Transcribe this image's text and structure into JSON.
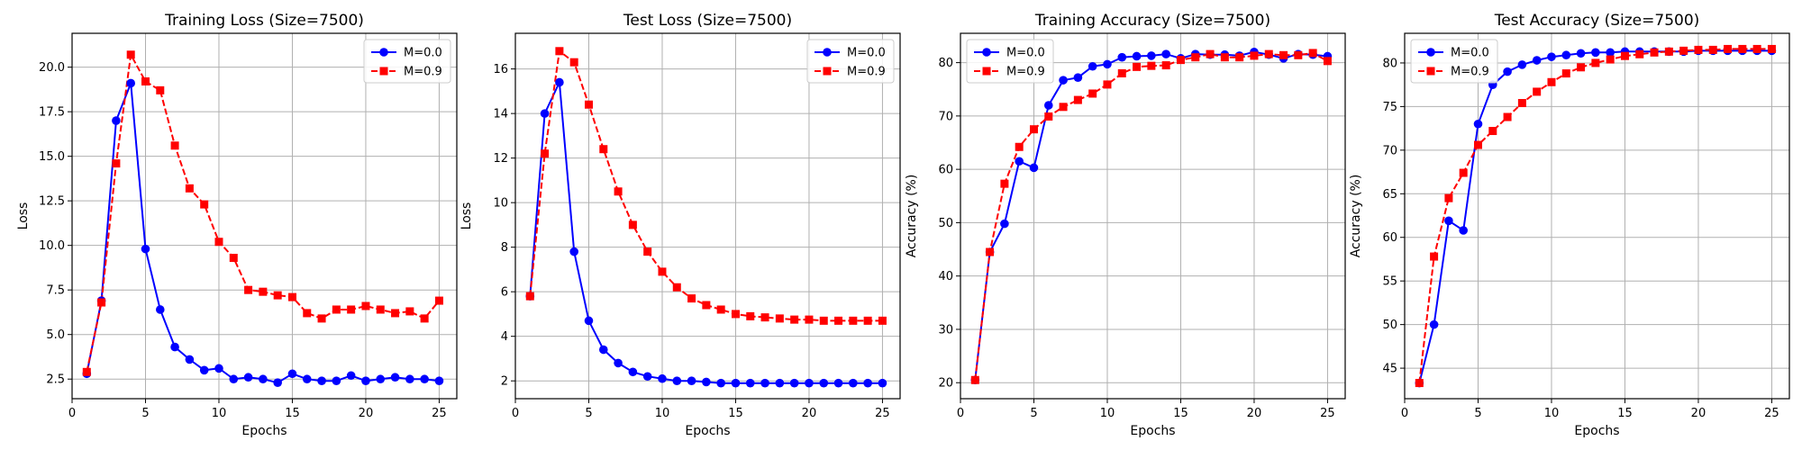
{
  "colors": {
    "m0": "#0000ff",
    "m9": "#ff0000",
    "grid": "#b0b0b0",
    "axis": "#000000"
  },
  "chart_data": [
    {
      "type": "line",
      "title": "Training Loss (Size=7500)",
      "xlabel": "Epochs",
      "ylabel": "Loss",
      "xlim": [
        0,
        26.2
      ],
      "ylim": [
        1.4,
        21.9
      ],
      "xticks": [
        0,
        5,
        10,
        15,
        20,
        25
      ],
      "yticks": [
        2.5,
        5.0,
        7.5,
        10.0,
        12.5,
        15.0,
        17.5,
        20.0
      ],
      "ytick_decimals": 1,
      "grid": true,
      "legend_position": "top-right",
      "x": [
        1,
        2,
        3,
        4,
        5,
        6,
        7,
        8,
        9,
        10,
        11,
        12,
        13,
        14,
        15,
        16,
        17,
        18,
        19,
        20,
        21,
        22,
        23,
        24,
        25
      ],
      "series": [
        {
          "name": "M=0.0",
          "color": "#0000ff",
          "marker": "circle",
          "linestyle": "solid",
          "values": [
            2.8,
            6.9,
            17.0,
            19.1,
            9.8,
            6.4,
            4.3,
            3.6,
            3.0,
            3.1,
            2.5,
            2.6,
            2.5,
            2.3,
            2.8,
            2.5,
            2.4,
            2.4,
            2.7,
            2.4,
            2.5,
            2.6,
            2.5,
            2.5,
            2.4
          ]
        },
        {
          "name": "M=0.9",
          "color": "#ff0000",
          "marker": "square",
          "linestyle": "dashed",
          "values": [
            2.9,
            6.8,
            14.6,
            20.7,
            19.2,
            18.7,
            15.6,
            13.2,
            12.3,
            10.2,
            9.3,
            7.5,
            7.4,
            7.2,
            7.1,
            6.2,
            5.9,
            6.4,
            6.4,
            6.6,
            6.4,
            6.2,
            6.3,
            5.9,
            6.9
          ]
        }
      ]
    },
    {
      "type": "line",
      "title": "Test Loss (Size=7500)",
      "xlabel": "Epochs",
      "ylabel": "Loss",
      "xlim": [
        0,
        26.2
      ],
      "ylim": [
        1.2,
        17.6
      ],
      "xticks": [
        0,
        5,
        10,
        15,
        20,
        25
      ],
      "yticks": [
        2,
        4,
        6,
        8,
        10,
        12,
        14,
        16
      ],
      "ytick_decimals": 0,
      "grid": true,
      "legend_position": "top-right",
      "x": [
        1,
        2,
        3,
        4,
        5,
        6,
        7,
        8,
        9,
        10,
        11,
        12,
        13,
        14,
        15,
        16,
        17,
        18,
        19,
        20,
        21,
        22,
        23,
        24,
        25
      ],
      "series": [
        {
          "name": "M=0.0",
          "color": "#0000ff",
          "marker": "circle",
          "linestyle": "solid",
          "values": [
            5.8,
            14.0,
            15.4,
            7.8,
            4.7,
            3.4,
            2.8,
            2.4,
            2.2,
            2.1,
            2.0,
            2.0,
            1.95,
            1.9,
            1.9,
            1.9,
            1.9,
            1.9,
            1.9,
            1.9,
            1.9,
            1.9,
            1.9,
            1.9,
            1.9
          ]
        },
        {
          "name": "M=0.9",
          "color": "#ff0000",
          "marker": "square",
          "linestyle": "dashed",
          "values": [
            5.8,
            12.2,
            16.8,
            16.3,
            14.4,
            12.4,
            10.5,
            9.0,
            7.8,
            6.9,
            6.2,
            5.7,
            5.4,
            5.2,
            5.0,
            4.9,
            4.85,
            4.8,
            4.75,
            4.75,
            4.7,
            4.7,
            4.7,
            4.7,
            4.7
          ]
        }
      ]
    },
    {
      "type": "line",
      "title": "Training Accuracy (Size=7500)",
      "xlabel": "Epochs",
      "ylabel": "Accuracy (%)",
      "xlim": [
        0,
        26.2
      ],
      "ylim": [
        17.0,
        85.5
      ],
      "xticks": [
        0,
        5,
        10,
        15,
        20,
        25
      ],
      "yticks": [
        20,
        30,
        40,
        50,
        60,
        70,
        80
      ],
      "ytick_decimals": 0,
      "grid": true,
      "legend_position": "top-left",
      "x": [
        1,
        2,
        3,
        4,
        5,
        6,
        7,
        8,
        9,
        10,
        11,
        12,
        13,
        14,
        15,
        16,
        17,
        18,
        19,
        20,
        21,
        22,
        23,
        24,
        25
      ],
      "series": [
        {
          "name": "M=0.0",
          "color": "#0000ff",
          "marker": "circle",
          "linestyle": "solid",
          "values": [
            20.5,
            44.5,
            49.8,
            61.5,
            60.3,
            72.0,
            76.7,
            77.2,
            79.3,
            79.7,
            81.0,
            81.2,
            81.3,
            81.6,
            80.8,
            81.6,
            81.5,
            81.5,
            81.3,
            82.0,
            81.5,
            80.8,
            81.6,
            81.5,
            81.2
          ]
        },
        {
          "name": "M=0.9",
          "color": "#ff0000",
          "marker": "square",
          "linestyle": "dashed",
          "values": [
            20.5,
            44.5,
            57.3,
            64.2,
            67.5,
            69.9,
            71.7,
            73.0,
            74.2,
            75.9,
            78.0,
            79.2,
            79.4,
            79.5,
            80.5,
            81.0,
            81.6,
            81.0,
            81.0,
            81.3,
            81.6,
            81.4,
            81.4,
            81.8,
            80.3
          ]
        }
      ]
    },
    {
      "type": "line",
      "title": "Test Accuracy (Size=7500)",
      "xlabel": "Epochs",
      "ylabel": "Accuracy (%)",
      "xlim": [
        0,
        26.2
      ],
      "ylim": [
        41.5,
        83.4
      ],
      "xticks": [
        0,
        5,
        10,
        15,
        20,
        25
      ],
      "yticks": [
        45,
        50,
        55,
        60,
        65,
        70,
        75,
        80
      ],
      "ytick_decimals": 0,
      "grid": true,
      "legend_position": "top-left",
      "x": [
        1,
        2,
        3,
        4,
        5,
        6,
        7,
        8,
        9,
        10,
        11,
        12,
        13,
        14,
        15,
        16,
        17,
        18,
        19,
        20,
        21,
        22,
        23,
        24,
        25
      ],
      "series": [
        {
          "name": "M=0.0",
          "color": "#0000ff",
          "marker": "circle",
          "linestyle": "solid",
          "values": [
            43.3,
            50.0,
            61.9,
            60.8,
            73.0,
            77.5,
            79.0,
            79.8,
            80.3,
            80.7,
            80.9,
            81.1,
            81.2,
            81.2,
            81.3,
            81.3,
            81.3,
            81.3,
            81.3,
            81.4,
            81.4,
            81.4,
            81.4,
            81.4,
            81.4
          ]
        },
        {
          "name": "M=0.9",
          "color": "#ff0000",
          "marker": "square",
          "linestyle": "dashed",
          "values": [
            43.3,
            57.8,
            64.5,
            67.4,
            70.6,
            72.2,
            73.8,
            75.4,
            76.7,
            77.8,
            78.8,
            79.5,
            80.0,
            80.4,
            80.8,
            81.0,
            81.2,
            81.3,
            81.4,
            81.5,
            81.5,
            81.6,
            81.6,
            81.6,
            81.6
          ]
        }
      ]
    }
  ]
}
